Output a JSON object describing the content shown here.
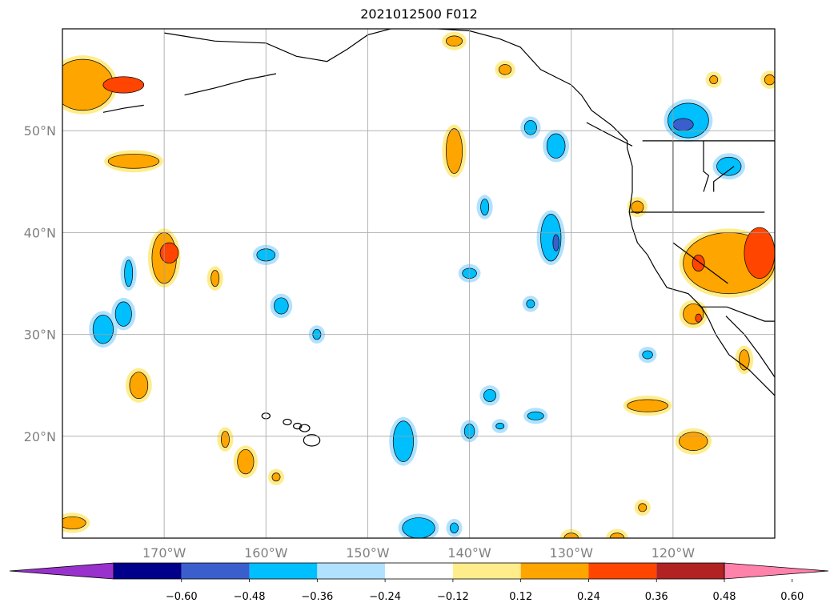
{
  "title": "2021012500 F012",
  "map": {
    "lon_range": [
      -180,
      -110
    ],
    "lat_range": [
      10,
      60
    ],
    "gridlines": true,
    "lat_ticks": [
      {
        "value": 20,
        "label": "20°N"
      },
      {
        "value": 30,
        "label": "30°N"
      },
      {
        "value": 40,
        "label": "40°N"
      },
      {
        "value": 50,
        "label": "50°N"
      }
    ],
    "lon_ticks": [
      {
        "value": -170,
        "label": "170°W"
      },
      {
        "value": -160,
        "label": "160°W"
      },
      {
        "value": -150,
        "label": "150°W"
      },
      {
        "value": -140,
        "label": "140°W"
      },
      {
        "value": -130,
        "label": "130°W"
      },
      {
        "value": -120,
        "label": "120°W"
      }
    ]
  },
  "colorbar": {
    "position": "bottom",
    "extend": "both",
    "colors": [
      "#9932cc",
      "#00008b",
      "#3a5fcd",
      "#00bfff",
      "#b0e2ff",
      "#ffffff",
      "#ffec8b",
      "#ffa500",
      "#ff4500",
      "#b22222",
      "#ff82ab"
    ],
    "ticks": [
      {
        "value": -0.6,
        "label": "−0.60"
      },
      {
        "value": -0.48,
        "label": "−0.48"
      },
      {
        "value": -0.36,
        "label": "−0.36"
      },
      {
        "value": -0.24,
        "label": "−0.24"
      },
      {
        "value": -0.12,
        "label": "−0.12"
      },
      {
        "value": 0.12,
        "label": "0.12"
      },
      {
        "value": 0.24,
        "label": "0.24"
      },
      {
        "value": 0.36,
        "label": "0.36"
      },
      {
        "value": 0.48,
        "label": "0.48"
      },
      {
        "value": 0.6,
        "label": "0.60"
      }
    ]
  },
  "contour_features": [
    {
      "lon": -178,
      "lat": 54.5,
      "rlon": 3.0,
      "rlat": 2.5,
      "level": 0.24
    },
    {
      "lon": -174,
      "lat": 54.5,
      "rlon": 2.0,
      "rlat": 0.8,
      "level": 0.36
    },
    {
      "lon": -173,
      "lat": 47.0,
      "rlon": 2.5,
      "rlat": 0.7,
      "level": 0.24
    },
    {
      "lon": -170,
      "lat": 37.5,
      "rlon": 1.2,
      "rlat": 2.5,
      "level": 0.24
    },
    {
      "lon": -169.5,
      "lat": 38.0,
      "rlon": 0.9,
      "rlat": 1.0,
      "level": 0.36
    },
    {
      "lon": -172.5,
      "lat": 25.0,
      "rlon": 0.9,
      "rlat": 1.3,
      "level": 0.24
    },
    {
      "lon": -173.5,
      "lat": 36.0,
      "rlon": 0.4,
      "rlat": 1.3,
      "level": -0.24
    },
    {
      "lon": -174,
      "lat": 32.0,
      "rlon": 0.8,
      "rlat": 1.2,
      "level": -0.24
    },
    {
      "lon": -176,
      "lat": 30.5,
      "rlon": 1.0,
      "rlat": 1.4,
      "level": -0.24
    },
    {
      "lon": -160,
      "lat": 37.8,
      "rlon": 0.9,
      "rlat": 0.6,
      "level": -0.24
    },
    {
      "lon": -158.5,
      "lat": 32.8,
      "rlon": 0.7,
      "rlat": 0.8,
      "level": -0.24
    },
    {
      "lon": -165,
      "lat": 35.5,
      "rlon": 0.4,
      "rlat": 0.8,
      "level": 0.24
    },
    {
      "lon": -164,
      "lat": 19.7,
      "rlon": 0.4,
      "rlat": 0.8,
      "level": 0.24
    },
    {
      "lon": -162,
      "lat": 17.5,
      "rlon": 0.8,
      "rlat": 1.2,
      "level": 0.24
    },
    {
      "lon": -159,
      "lat": 16.0,
      "rlon": 0.4,
      "rlat": 0.4,
      "level": 0.24
    },
    {
      "lon": -179,
      "lat": 11.5,
      "rlon": 1.3,
      "rlat": 0.6,
      "level": 0.24
    },
    {
      "lon": -141.5,
      "lat": 48.0,
      "rlon": 0.8,
      "rlat": 2.2,
      "level": 0.24
    },
    {
      "lon": -141.5,
      "lat": 58.8,
      "rlon": 0.8,
      "rlat": 0.5,
      "level": 0.24
    },
    {
      "lon": -136.5,
      "lat": 56.0,
      "rlon": 0.6,
      "rlat": 0.5,
      "level": 0.24
    },
    {
      "lon": -134,
      "lat": 50.3,
      "rlon": 0.6,
      "rlat": 0.7,
      "level": -0.24
    },
    {
      "lon": -131.5,
      "lat": 48.5,
      "rlon": 0.9,
      "rlat": 1.2,
      "level": -0.24
    },
    {
      "lon": -138.5,
      "lat": 42.5,
      "rlon": 0.4,
      "rlat": 0.8,
      "level": -0.24
    },
    {
      "lon": -132,
      "lat": 39.5,
      "rlon": 1.0,
      "rlat": 2.3,
      "level": -0.24
    },
    {
      "lon": -131.5,
      "lat": 39.0,
      "rlon": 0.3,
      "rlat": 0.8,
      "level": -0.36
    },
    {
      "lon": -140,
      "lat": 36.0,
      "rlon": 0.7,
      "rlat": 0.5,
      "level": -0.24
    },
    {
      "lon": -134,
      "lat": 33.0,
      "rlon": 0.4,
      "rlat": 0.4,
      "level": -0.24
    },
    {
      "lon": -155,
      "lat": 30.0,
      "rlon": 0.4,
      "rlat": 0.5,
      "level": -0.24
    },
    {
      "lon": -146.5,
      "lat": 19.5,
      "rlon": 1.0,
      "rlat": 2.0,
      "level": -0.24
    },
    {
      "lon": -140,
      "lat": 20.5,
      "rlon": 0.5,
      "rlat": 0.7,
      "level": -0.24
    },
    {
      "lon": -138,
      "lat": 24.0,
      "rlon": 0.6,
      "rlat": 0.6,
      "level": -0.24
    },
    {
      "lon": -133.5,
      "lat": 22.0,
      "rlon": 0.8,
      "rlat": 0.4,
      "level": -0.24
    },
    {
      "lon": -137,
      "lat": 21.0,
      "rlon": 0.4,
      "rlat": 0.3,
      "level": -0.24
    },
    {
      "lon": -145,
      "lat": 11.0,
      "rlon": 1.6,
      "rlat": 1.0,
      "level": -0.24
    },
    {
      "lon": -141.5,
      "lat": 11.0,
      "rlon": 0.4,
      "rlat": 0.5,
      "level": -0.24
    },
    {
      "lon": -118.5,
      "lat": 51.0,
      "rlon": 2.0,
      "rlat": 1.7,
      "level": -0.24
    },
    {
      "lon": -119,
      "lat": 50.6,
      "rlon": 1.0,
      "rlat": 0.6,
      "level": -0.36
    },
    {
      "lon": -114.5,
      "lat": 46.5,
      "rlon": 1.2,
      "rlat": 0.9,
      "level": -0.24
    },
    {
      "lon": -122.5,
      "lat": 28.0,
      "rlon": 0.5,
      "rlat": 0.4,
      "level": -0.24
    },
    {
      "lon": -114.5,
      "lat": 37.0,
      "rlon": 4.5,
      "rlat": 3.0,
      "level": 0.24
    },
    {
      "lon": -111.5,
      "lat": 38.0,
      "rlon": 1.5,
      "rlat": 2.5,
      "level": 0.36
    },
    {
      "lon": -117.5,
      "lat": 37.0,
      "rlon": 0.6,
      "rlat": 0.8,
      "level": 0.36
    },
    {
      "lon": -118,
      "lat": 32.0,
      "rlon": 1.0,
      "rlat": 1.0,
      "level": 0.24
    },
    {
      "lon": -117.5,
      "lat": 31.6,
      "rlon": 0.3,
      "rlat": 0.4,
      "level": 0.36
    },
    {
      "lon": -122.5,
      "lat": 23.0,
      "rlon": 2.0,
      "rlat": 0.6,
      "level": 0.24
    },
    {
      "lon": -118,
      "lat": 19.5,
      "rlon": 1.4,
      "rlat": 0.9,
      "level": 0.24
    },
    {
      "lon": -123,
      "lat": 13.0,
      "rlon": 0.4,
      "rlat": 0.4,
      "level": 0.24
    },
    {
      "lon": -123.5,
      "lat": 42.5,
      "rlon": 0.6,
      "rlat": 0.6,
      "level": 0.24
    },
    {
      "lon": -116,
      "lat": 55.0,
      "rlon": 0.4,
      "rlat": 0.4,
      "level": 0.24
    },
    {
      "lon": -110.5,
      "lat": 55.0,
      "rlon": 0.5,
      "rlat": 0.5,
      "level": 0.24
    },
    {
      "lon": -113,
      "lat": 27.5,
      "rlon": 0.5,
      "rlat": 1.0,
      "level": 0.24
    },
    {
      "lon": -130,
      "lat": 10.0,
      "rlon": 0.7,
      "rlat": 0.5,
      "level": 0.24
    },
    {
      "lon": -125.5,
      "lat": 10.0,
      "rlon": 0.7,
      "rlat": 0.5,
      "level": 0.24
    }
  ]
}
